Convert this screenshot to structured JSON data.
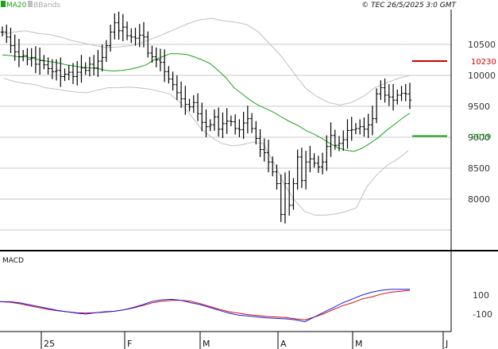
{
  "header": {
    "legend_ma": "MA20",
    "legend_bb": "BBands",
    "copyright": "© TEC 26/5/2025 3:0 GMT"
  },
  "colors": {
    "background": "#ffffff",
    "grid": "#c8c8c8",
    "frame": "#000000",
    "ohlc": "#000000",
    "ma": "#1aa31a",
    "bbands": "#c0c0c0",
    "macd": "#1a1ae6",
    "signal": "#cc1111",
    "resistance": "#cc0000",
    "support": "#1aa31a"
  },
  "chart_data": [
    {
      "type": "ohlc",
      "panel": "price",
      "y_axis": {
        "position": "right",
        "ticks": [
          8000,
          8500,
          9000,
          9500,
          10000,
          10500
        ],
        "range": [
          7500,
          10700
        ]
      },
      "x_axis": {
        "labels": [
          "25",
          "F",
          "M",
          "A",
          "M",
          "J"
        ]
      },
      "legend": [
        "MA20",
        "BBands"
      ],
      "levels": [
        {
          "name": "resistance",
          "value": 10230,
          "label": "10230"
        },
        {
          "name": "support",
          "value": 9019,
          "label": "9019"
        }
      ],
      "series": [
        {
          "name": "price",
          "values": [
            10700,
            10620,
            10480,
            10380,
            10300,
            10320,
            10260,
            10290,
            10180,
            10240,
            10170,
            10110,
            10060,
            10080,
            9980,
            10020,
            10050,
            9980,
            10050,
            10120,
            10080,
            10180,
            10120,
            10230,
            10290,
            10480,
            10700,
            10850,
            10720,
            10780,
            10640,
            10620,
            10600,
            10650,
            10620,
            10360,
            10300,
            10250,
            10210,
            10060,
            9940,
            9850,
            9720,
            9620,
            9530,
            9490,
            9560,
            9380,
            9240,
            9170,
            9200,
            9330,
            9130,
            9220,
            9260,
            9250,
            9140,
            9120,
            9230,
            9300,
            9140,
            8980,
            8800,
            8750,
            8600,
            8440,
            8250,
            7750,
            8250,
            7900,
            8250,
            8680,
            8300,
            8600,
            8650,
            8580,
            8520,
            8600,
            8850,
            9030,
            8870,
            8900,
            8960,
            9110,
            9120,
            9140,
            9170,
            9130,
            9200,
            9300,
            9700,
            9800,
            9680,
            9650,
            9600,
            9680,
            9710,
            9700,
            9600
          ]
        },
        {
          "name": "MA20",
          "values": [
            10330,
            10320,
            10300,
            10300,
            10270,
            10240,
            10220,
            10200,
            10170,
            10150,
            10130,
            10120,
            10110,
            10080,
            10070,
            10080,
            10100,
            10130,
            10170,
            10250,
            10300,
            10350,
            10350,
            10340,
            10300,
            10250,
            10190,
            10080,
            9960,
            9800,
            9700,
            9600,
            9520,
            9460,
            9400,
            9320,
            9250,
            9190,
            9110,
            9050,
            8980,
            8900,
            8830,
            8790,
            8770,
            8820,
            8900,
            8990,
            9100,
            9200,
            9300,
            9390
          ]
        },
        {
          "name": "BB upper",
          "values": [
            10660,
            10700,
            10720,
            10680,
            10660,
            10620,
            10560,
            10520,
            10480,
            10450,
            10460,
            10480,
            10530,
            10600,
            10680,
            10760,
            10840,
            10900,
            10920,
            10880,
            10860,
            10820,
            10700,
            10500,
            10300,
            10050,
            9800,
            9660,
            9560,
            9520,
            9560,
            9660,
            9800,
            9880,
            9950,
            10000
          ]
        },
        {
          "name": "BB lower",
          "values": [
            9950,
            9900,
            9870,
            9850,
            9800,
            9780,
            9750,
            9730,
            9720,
            9760,
            9800,
            9800,
            9810,
            9800,
            9780,
            9740,
            9700,
            9560,
            9360,
            9140,
            9000,
            8900,
            8860,
            8880,
            8920,
            8900,
            8600,
            8250,
            7990,
            7800,
            7740,
            7740,
            7760,
            7800,
            7860,
            8200,
            8400,
            8550,
            8650,
            8780
          ]
        }
      ]
    },
    {
      "type": "line",
      "panel": "macd",
      "title": "MACD",
      "y_axis": {
        "position": "right",
        "ticks": [
          100,
          -100
        ],
        "range": [
          -200,
          180
        ]
      },
      "series": [
        {
          "name": "MACD",
          "values": [
            30,
            30,
            20,
            0,
            -20,
            -40,
            -60,
            -75,
            -90,
            -100,
            -85,
            -75,
            -70,
            -55,
            -30,
            0,
            35,
            50,
            55,
            45,
            20,
            0,
            -30,
            -60,
            -90,
            -110,
            -120,
            -130,
            -140,
            -145,
            -150,
            -160,
            -180,
            -130,
            -80,
            -30,
            20,
            60,
            100,
            130,
            150,
            160,
            160,
            160
          ]
        },
        {
          "name": "Signal",
          "values": [
            30,
            25,
            10,
            -10,
            -30,
            -50,
            -65,
            -75,
            -85,
            -88,
            -85,
            -80,
            -70,
            -55,
            -35,
            -10,
            20,
            35,
            45,
            45,
            35,
            10,
            -20,
            -50,
            -75,
            -90,
            -105,
            -115,
            -125,
            -130,
            -135,
            -150,
            -160,
            -130,
            -95,
            -50,
            -10,
            20,
            60,
            80,
            110,
            130,
            140,
            150
          ]
        }
      ]
    }
  ]
}
